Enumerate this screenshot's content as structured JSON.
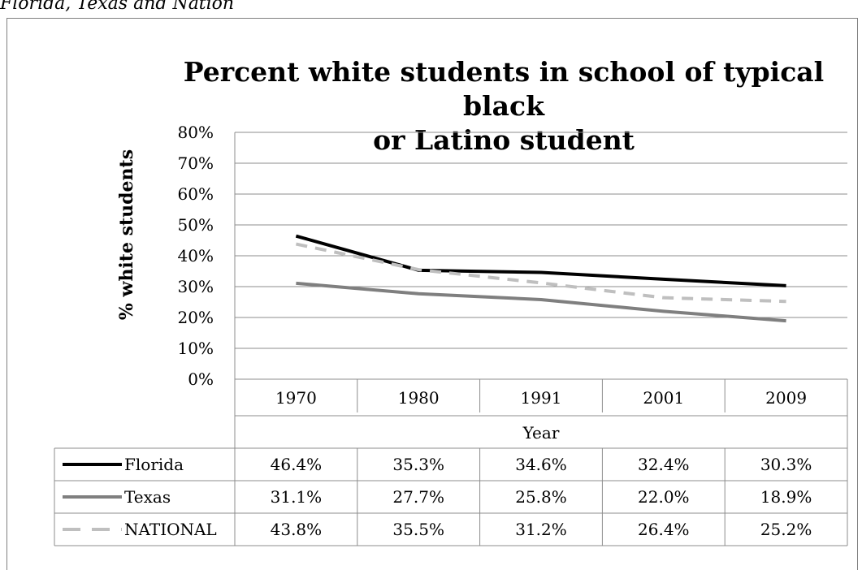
{
  "caption": "Florida, Texas and Nation",
  "chart_data": {
    "type": "line",
    "title": "Percent white students in school of typical black or Latino student",
    "title_lines": [
      "Percent white students in school of typical black",
      "or Latino student"
    ],
    "xlabel": "Year",
    "ylabel": "% white students",
    "categories": [
      "1970",
      "1980",
      "1991",
      "2001",
      "2009"
    ],
    "yticks": [
      "0%",
      "10%",
      "20%",
      "30%",
      "40%",
      "50%",
      "60%",
      "70%",
      "80%"
    ],
    "ylim": [
      0,
      80
    ],
    "grid": true,
    "legend": "data-table",
    "series": [
      {
        "name": "Florida",
        "values": [
          46.4,
          35.3,
          34.6,
          32.4,
          30.3
        ],
        "labels": [
          "46.4%",
          "35.3%",
          "34.6%",
          "32.4%",
          "30.3%"
        ],
        "color": "#000000",
        "style": "solid"
      },
      {
        "name": "Texas",
        "values": [
          31.1,
          27.7,
          25.8,
          22.0,
          18.9
        ],
        "labels": [
          "31.1%",
          "27.7%",
          "25.8%",
          "22.0%",
          "18.9%"
        ],
        "color": "#7f7f7f",
        "style": "solid"
      },
      {
        "name": "NATIONAL",
        "values": [
          43.8,
          35.5,
          31.2,
          26.4,
          25.2
        ],
        "labels": [
          "43.8%",
          "35.5%",
          "31.2%",
          "26.4%",
          "25.2%"
        ],
        "color": "#bfbfbf",
        "style": "dashed"
      }
    ]
  }
}
